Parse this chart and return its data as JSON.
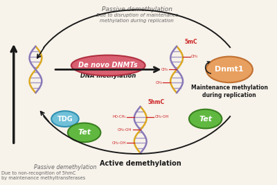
{
  "bg_color": "#f7f2ea",
  "passive_demeth_text": "Passive demethylation",
  "disruption_text": "Due to disruption of maintenance\nmethylation during replication",
  "dna_methylation_label": "DNA methylation",
  "de_novo_label": "De novo DNMTs",
  "dnmt1_label": "Dnmt1",
  "maintenance_label": "Maintenance methylation\nduring replication",
  "5mc_label": "5mC",
  "5hmc_label": "5hmC",
  "active_demeth_label": "Active demethylation",
  "passive_demeth2_label": "Passive demethylation",
  "non_recognition_label": "Due to non-recognition of 5hmC\nby maintenance methyltransferases",
  "tdg_label": "TDG",
  "tet_label1": "Tet",
  "tet_label2": "Tet",
  "de_novo_fill": "#d96070",
  "de_novo_edge": "#b03040",
  "dnmt1_color": "#e8a060",
  "dnmt1_edge": "#c07030",
  "tdg_color": "#70c0d8",
  "tdg_edge": "#3090b0",
  "tet1_color": "#60b840",
  "tet1_edge": "#3a8020",
  "tet2_color": "#60b840",
  "tet2_edge": "#3a8020",
  "dna_gold": "#dba820",
  "dna_purple": "#8878b8",
  "methyl_red": "#cc2020",
  "arrow_color": "#1a1a1a",
  "text_dark": "#1a1a1a",
  "text_gray": "#666666"
}
